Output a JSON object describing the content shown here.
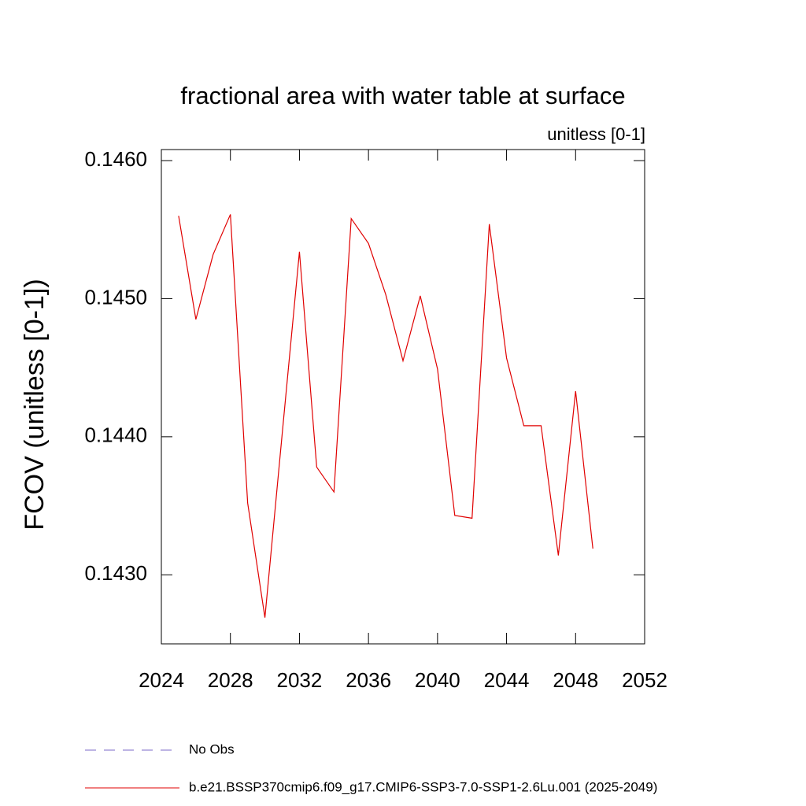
{
  "chart_data": {
    "type": "line",
    "title": "fractional area with water table at surface",
    "subtitle": "unitless [0-1]",
    "y_label": "FCOV  (unitless [0-1])",
    "x": [
      2025,
      2026,
      2027,
      2028,
      2029,
      2030,
      2031,
      2032,
      2033,
      2034,
      2035,
      2036,
      2037,
      2038,
      2039,
      2040,
      2041,
      2042,
      2043,
      2044,
      2045,
      2046,
      2047,
      2048,
      2049
    ],
    "series": [
      {
        "name": "No Obs",
        "color": "#7b68c8",
        "dash": "dashed",
        "values": [
          null,
          null,
          null,
          null,
          null,
          null,
          null,
          null,
          null,
          null,
          null,
          null,
          null,
          null,
          null,
          null,
          null,
          null,
          null,
          null,
          null,
          null,
          null,
          null,
          null
        ]
      },
      {
        "name": "b.e21.BSSP370cmip6.f09_g17.CMIP6-SSP3-7.0-SSP1-2.6Lu.001 (2025-2049)",
        "color": "#e00000",
        "dash": "solid",
        "values": [
          0.1456,
          0.14485,
          0.14532,
          0.14561,
          0.14352,
          0.14269,
          0.14402,
          0.14534,
          0.14378,
          0.1436,
          0.14558,
          0.1454,
          0.14503,
          0.14455,
          0.14502,
          0.14449,
          0.14343,
          0.14341,
          0.14554,
          0.14457,
          0.14408,
          0.14408,
          0.14314,
          0.14433,
          0.14319
        ]
      }
    ],
    "xlim": [
      2024,
      2052
    ],
    "xticks": [
      2024,
      2028,
      2032,
      2036,
      2040,
      2044,
      2048,
      2052
    ],
    "ylim": [
      0.1425,
      0.14608
    ],
    "yticks": [
      {
        "value": 0.143,
        "label": "0.1430"
      },
      {
        "value": 0.144,
        "label": "0.1440"
      },
      {
        "value": 0.145,
        "label": "0.1450"
      },
      {
        "value": 0.146,
        "label": "0.1460"
      }
    ],
    "grid": false
  }
}
